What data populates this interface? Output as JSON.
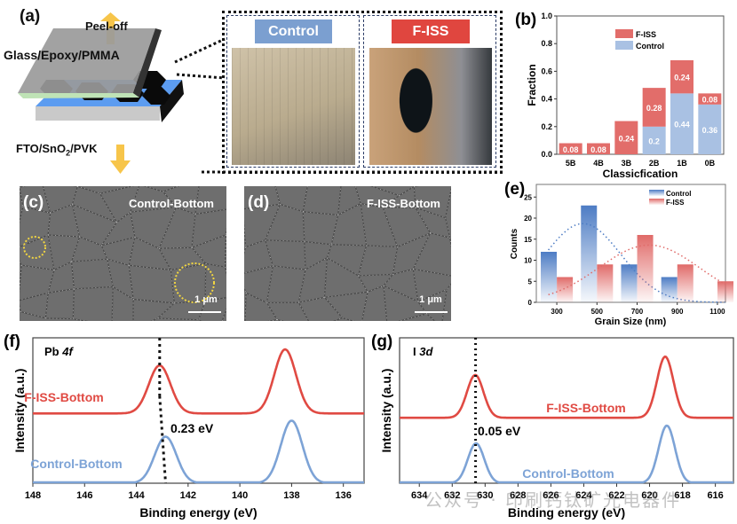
{
  "panel_a": {
    "letter": "(a)",
    "peel_off": "Peel-off",
    "top_layer": "Glass/Epoxy/PMMA",
    "bottom_layer": "FTO/SnO",
    "bottom_layer_sub": "2",
    "bottom_layer_rest": "/PVK",
    "photo_control_label": "Control",
    "photo_fiss_label": "F-ISS",
    "colors": {
      "control": "#7b9fd0",
      "fiss": "#e0463f",
      "arrow": "#f7c54a",
      "film": "#5c9cf0"
    }
  },
  "panel_c": {
    "letter": "(c)",
    "title": "Control-Bottom",
    "scale": "1 μm"
  },
  "panel_d": {
    "letter": "(d)",
    "title": "F-ISS-Bottom",
    "scale": "1 μm"
  },
  "watermark": "公众号 · 印刷钙钛矿光电器件",
  "chart_data": [
    {
      "id": "b",
      "letter": "(b)",
      "type": "bar",
      "stacked": true,
      "categories": [
        "5B",
        "4B",
        "3B",
        "2B",
        "1B",
        "0B"
      ],
      "series": [
        {
          "name": "Control",
          "color": "#a9c1e3",
          "values": [
            0,
            0,
            0,
            0.2,
            0.44,
            0.36
          ],
          "labels": [
            "",
            "",
            "",
            "0.2",
            "0.44",
            "0.36"
          ]
        },
        {
          "name": "F-ISS",
          "color": "#e26d6a",
          "values": [
            0.08,
            0.08,
            0.24,
            0.28,
            0.24,
            0.08
          ],
          "labels": [
            "0.08",
            "0.08",
            "0.24",
            "0.28",
            "0.24",
            "0.08"
          ]
        }
      ],
      "legend": [
        "F-ISS",
        "Control"
      ],
      "legend_position": "top-center",
      "xlabel": "Classicfication",
      "ylabel": "Fraction",
      "ylim": [
        0,
        1.0
      ],
      "yticks": [
        "0.0",
        "0.2",
        "0.4",
        "0.6",
        "0.8",
        "1.0"
      ]
    },
    {
      "id": "e",
      "letter": "(e)",
      "type": "bar",
      "categories": [
        "300",
        "500",
        "700",
        "900",
        "1100"
      ],
      "x": [
        300,
        500,
        700,
        900,
        1100
      ],
      "series": [
        {
          "name": "Control",
          "color": "#4d7cc4",
          "values": [
            12,
            23,
            9,
            6,
            null
          ],
          "fit_peak": [
            430,
            18.7
          ],
          "fit_sigma": 190
        },
        {
          "name": "F-ISS",
          "color": "#e06a68",
          "values": [
            6,
            9,
            16,
            9,
            5
          ],
          "fit_peak": [
            760,
            13.6
          ],
          "fit_sigma": 250
        }
      ],
      "legend_position": "top-right",
      "xlabel": "Grain Size (nm)",
      "ylabel": "Counts",
      "ylim": [
        0,
        28
      ],
      "yticks": [
        "0",
        "5",
        "10",
        "15",
        "20",
        "25"
      ],
      "xlim": [
        198,
        1140
      ]
    },
    {
      "id": "f",
      "letter": "(f)",
      "type": "line",
      "title": "Pb 4f",
      "xlabel": "Binding energy (eV)",
      "ylabel": "Intensity (a.u.)",
      "xlim": [
        148,
        135.2
      ],
      "xticks": [
        148,
        146,
        144,
        142,
        140,
        138,
        136
      ],
      "ylim": [
        0,
        100
      ],
      "annotation": "0.23 eV",
      "series": [
        {
          "name": "F-ISS-Bottom",
          "color": "#e04a43",
          "baseline": 48,
          "peaks": [
            [
              143.1,
              33
            ],
            [
              138.25,
              44
            ]
          ],
          "sigma": 0.42
        },
        {
          "name": "Control-Bottom",
          "color": "#7da3d6",
          "baseline": 0,
          "peaks": [
            [
              142.87,
              32
            ],
            [
              138.0,
              43
            ]
          ],
          "sigma": 0.42
        }
      ],
      "markers": [
        143.1,
        142.87
      ]
    },
    {
      "id": "g",
      "letter": "(g)",
      "type": "line",
      "title": "I 3d",
      "xlabel": "Binding energy (eV)",
      "ylabel": "Intensity (a.u.)",
      "xlim": [
        635.2,
        614.9
      ],
      "xticks": [
        634,
        632,
        630,
        628,
        626,
        624,
        622,
        620,
        618,
        616
      ],
      "ylim": [
        0,
        100
      ],
      "annotation": "0.05 eV",
      "series": [
        {
          "name": "F-ISS-Bottom",
          "color": "#e04a43",
          "baseline": 45,
          "peaks": [
            [
              630.6,
              29.4
            ],
            [
              619.05,
              42
            ]
          ],
          "sigma": 0.5
        },
        {
          "name": "Control-Bottom",
          "color": "#7da3d6",
          "baseline": 0,
          "peaks": [
            [
              630.55,
              27.4
            ],
            [
              618.95,
              39.6
            ]
          ],
          "sigma": 0.5
        }
      ],
      "markers": [
        630.58
      ]
    }
  ]
}
